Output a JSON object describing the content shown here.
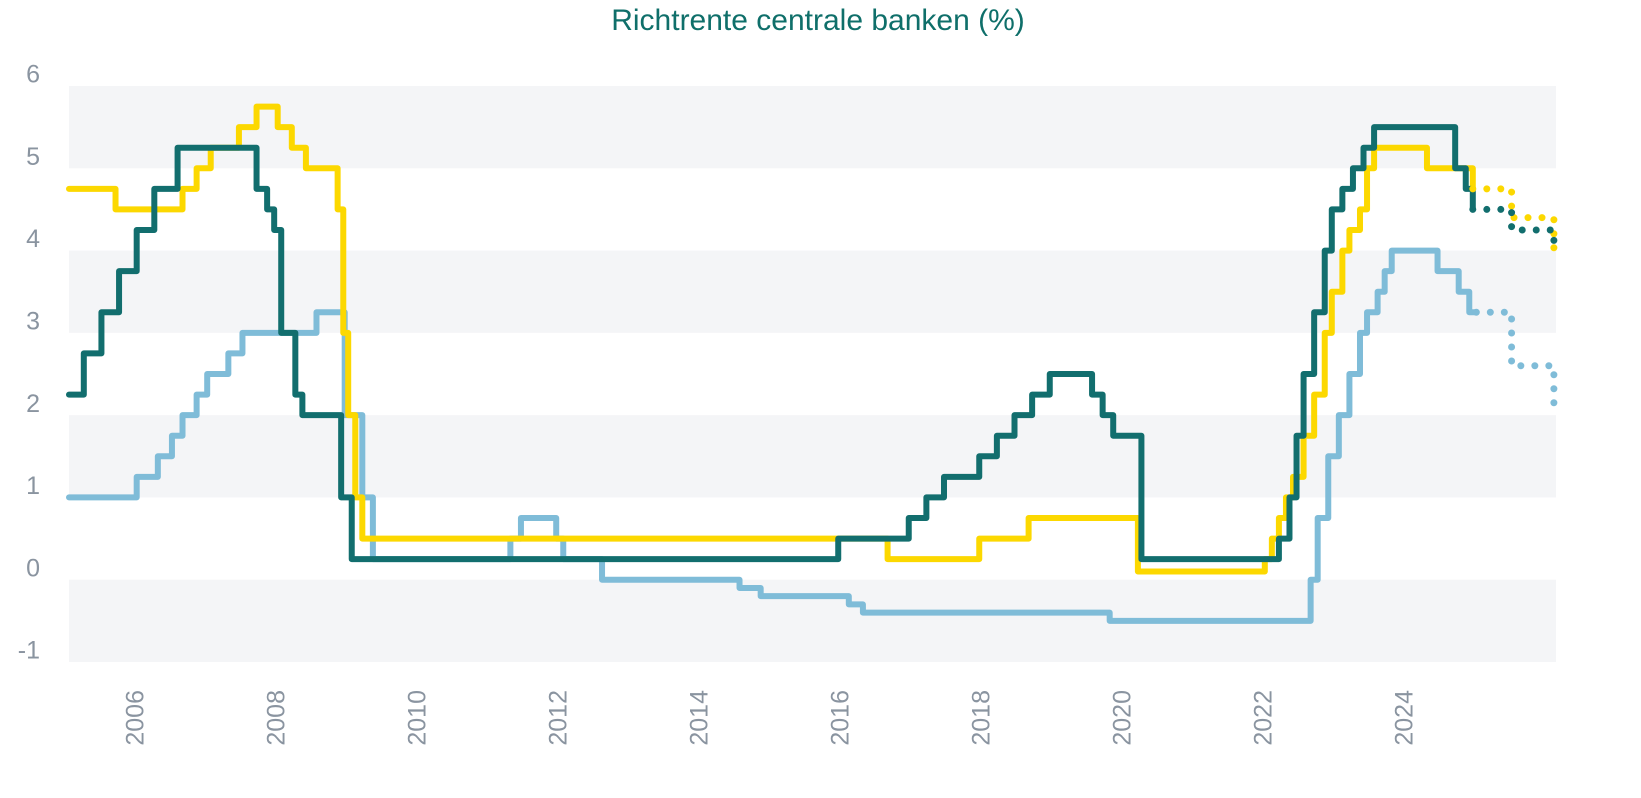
{
  "chart_data": {
    "type": "line",
    "title": "Richtrente centrale banken (%)",
    "xlim": [
      2005.04,
      2026.13
    ],
    "xticks": [
      2006,
      2008,
      2010,
      2012,
      2014,
      2016,
      2018,
      2020,
      2022,
      2024
    ],
    "ylim": [
      -1,
      6
    ],
    "yticks": [
      -1,
      0,
      1,
      2,
      3,
      4,
      5,
      6
    ],
    "grid": "bands",
    "band_color": "#f4f5f7",
    "step": "after",
    "series": [
      {
        "color": "#7fbcd8",
        "style": "solid",
        "x": [
          2005.04,
          2006.0,
          2006.3,
          2006.5,
          2006.65,
          2006.85,
          2007.0,
          2007.3,
          2007.5,
          2008.55,
          2008.95,
          2009.2,
          2009.35,
          2011.3,
          2011.45,
          2011.95,
          2012.05,
          2012.6,
          2014.55,
          2014.85,
          2016.1,
          2016.3,
          2019.8,
          2022.65,
          2022.75,
          2022.9,
          2023.05,
          2023.2,
          2023.35,
          2023.45,
          2023.6,
          2023.7,
          2023.8,
          2024.45,
          2024.75,
          2024.9,
          2025.0
        ],
        "values": [
          1.0,
          1.25,
          1.5,
          1.75,
          2.0,
          2.25,
          2.5,
          2.75,
          3.0,
          3.25,
          2.0,
          1.0,
          0.25,
          0.5,
          0.75,
          0.5,
          0.25,
          0.0,
          -0.1,
          -0.2,
          -0.3,
          -0.4,
          -0.5,
          0.0,
          0.75,
          1.5,
          2.0,
          2.5,
          3.0,
          3.25,
          3.5,
          3.75,
          4.0,
          3.75,
          3.5,
          3.25,
          3.25
        ]
      },
      {
        "color": "#fcd800",
        "style": "solid",
        "x": [
          2005.04,
          2005.7,
          2006.65,
          2006.85,
          2007.05,
          2007.45,
          2007.7,
          2008.0,
          2008.2,
          2008.4,
          2008.85,
          2008.93,
          2009.0,
          2009.1,
          2009.2,
          2016.65,
          2017.95,
          2018.65,
          2020.2,
          2022.0,
          2022.1,
          2022.2,
          2022.3,
          2022.4,
          2022.55,
          2022.7,
          2022.85,
          2022.95,
          2023.1,
          2023.2,
          2023.35,
          2023.45,
          2023.55,
          2024.3,
          2024.95
        ],
        "values": [
          4.75,
          4.5,
          4.75,
          5.0,
          5.25,
          5.5,
          5.75,
          5.5,
          5.25,
          5.0,
          4.5,
          3.0,
          2.0,
          1.0,
          0.5,
          0.25,
          0.5,
          0.75,
          0.1,
          0.25,
          0.5,
          0.75,
          1.0,
          1.25,
          1.75,
          2.25,
          3.0,
          3.5,
          4.0,
          4.25,
          4.5,
          5.0,
          5.25,
          5.0,
          4.75
        ]
      },
      {
        "color": "#126e6e",
        "style": "solid",
        "x": [
          2005.04,
          2005.25,
          2005.5,
          2005.75,
          2006.0,
          2006.25,
          2006.58,
          2007.7,
          2007.85,
          2007.95,
          2008.05,
          2008.25,
          2008.35,
          2008.9,
          2009.05,
          2015.95,
          2016.95,
          2017.2,
          2017.45,
          2017.95,
          2018.2,
          2018.45,
          2018.7,
          2018.95,
          2019.55,
          2019.7,
          2019.85,
          2020.25,
          2022.2,
          2022.35,
          2022.45,
          2022.55,
          2022.7,
          2022.85,
          2022.95,
          2023.1,
          2023.25,
          2023.4,
          2023.55,
          2024.7,
          2024.85,
          2024.95
        ],
        "values": [
          2.25,
          2.75,
          3.25,
          3.75,
          4.25,
          4.75,
          5.25,
          4.75,
          4.5,
          4.25,
          3.0,
          2.25,
          2.0,
          1.0,
          0.25,
          0.5,
          0.75,
          1.0,
          1.25,
          1.5,
          1.75,
          2.0,
          2.25,
          2.5,
          2.25,
          2.0,
          1.75,
          0.25,
          0.5,
          1.0,
          1.75,
          2.5,
          3.25,
          4.0,
          4.5,
          4.75,
          5.0,
          5.25,
          5.5,
          5.0,
          4.75,
          4.5
        ]
      },
      {
        "color": "#7fbcd8",
        "style": "dotted",
        "x": [
          2025.0,
          2025.5,
          2026.1
        ],
        "values": [
          3.25,
          2.6,
          2.0
        ]
      },
      {
        "color": "#fcd800",
        "style": "dotted",
        "x": [
          2024.95,
          2025.5,
          2026.1
        ],
        "values": [
          4.75,
          4.4,
          4.0
        ]
      },
      {
        "color": "#126e6e",
        "style": "dotted",
        "x": [
          2024.95,
          2025.5,
          2026.1
        ],
        "values": [
          4.5,
          4.25,
          4.0
        ]
      }
    ]
  }
}
